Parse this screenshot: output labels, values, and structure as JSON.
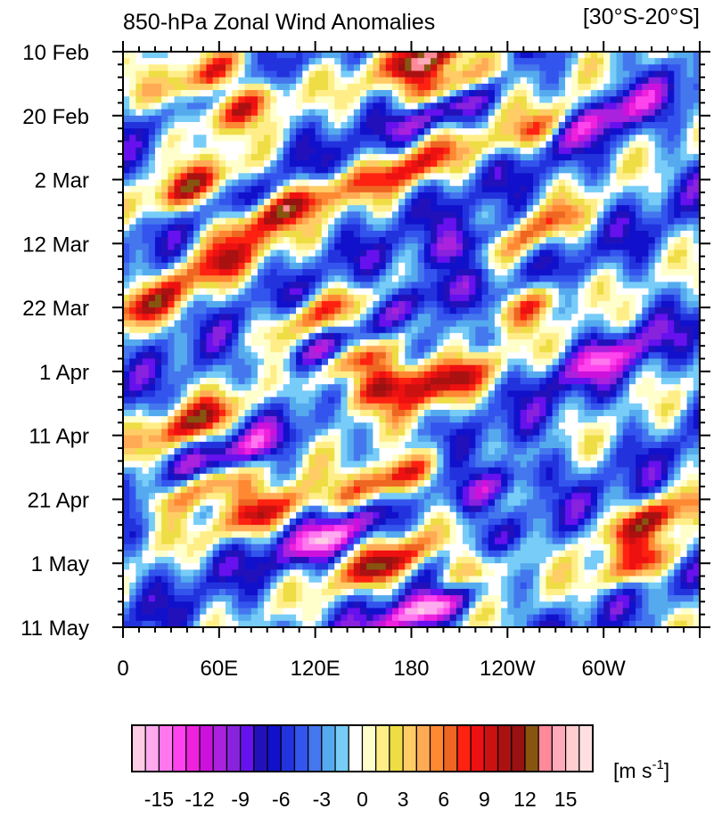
{
  "chart_data": {
    "type": "heatmap",
    "title": "850-hPa Zonal Wind Anomalies",
    "region_label": "[30°S-20°S]",
    "x_ticks": [
      "0",
      "60E",
      "120E",
      "180",
      "120W",
      "60W"
    ],
    "x_tick_longitudes": [
      0,
      60,
      120,
      180,
      240,
      300
    ],
    "xlim": [
      0,
      360
    ],
    "y_ticks": [
      "10 Feb",
      "20 Feb",
      "2 Mar",
      "12 Mar",
      "22 Mar",
      "1 Apr",
      "11 Apr",
      "21 Apr",
      "1 May",
      "11 May"
    ],
    "y_tick_days": [
      0,
      10,
      20,
      30,
      40,
      50,
      60,
      70,
      80,
      90
    ],
    "ylim": [
      0,
      90
    ],
    "colorbar": {
      "labels": [
        "-15",
        "-12",
        "-9",
        "-6",
        "-3",
        "0",
        "3",
        "6",
        "9",
        "12",
        "15"
      ],
      "label_values": [
        -15,
        -12,
        -9,
        -6,
        -3,
        0,
        3,
        6,
        9,
        12,
        15
      ],
      "units_main": "[m s",
      "units_sup": "-1",
      "units_end": "]",
      "colors": [
        "#ffcce6",
        "#ffaaee",
        "#ff77ee",
        "#ff44ee",
        "#ee22dd",
        "#cc11dd",
        "#aa22dd",
        "#8822dd",
        "#6611ee",
        "#2211bb",
        "#1111cc",
        "#2233dd",
        "#3355ee",
        "#4477ee",
        "#55aaee",
        "#77ccf8",
        "#ffffff",
        "#ffffcc",
        "#ffee88",
        "#eedd44",
        "#ffcc66",
        "#ffaa55",
        "#ff8833",
        "#ee6622",
        "#ff2211",
        "#ee1111",
        "#cc1111",
        "#aa1111",
        "#991111",
        "#885511",
        "#ff8899",
        "#ffaabb",
        "#ffccd0",
        "#ffe0e0"
      ]
    },
    "anomaly_features": [
      {
        "sign": "positive",
        "lon": 10,
        "day": 40,
        "amp": 10
      },
      {
        "sign": "positive",
        "lon": 50,
        "day": 4,
        "amp": 12
      },
      {
        "sign": "positive",
        "lon": 70,
        "day": 9,
        "amp": 11
      },
      {
        "sign": "positive",
        "lon": 45,
        "day": 21,
        "amp": 11
      },
      {
        "sign": "positive",
        "lon": 80,
        "day": 27,
        "amp": 9
      },
      {
        "sign": "positive",
        "lon": 60,
        "day": 33,
        "amp": 9
      },
      {
        "sign": "positive",
        "lon": 45,
        "day": 58,
        "amp": 12
      },
      {
        "sign": "positive",
        "lon": 50,
        "day": 68,
        "amp": 12
      },
      {
        "sign": "positive",
        "lon": 90,
        "day": 72,
        "amp": 11
      },
      {
        "sign": "positive",
        "lon": 115,
        "day": 23,
        "amp": 9
      },
      {
        "sign": "positive",
        "lon": 120,
        "day": 41,
        "amp": 10
      },
      {
        "sign": "positive",
        "lon": 150,
        "day": 48,
        "amp": 12
      },
      {
        "sign": "positive",
        "lon": 165,
        "day": 52,
        "amp": 13
      },
      {
        "sign": "positive",
        "lon": 165,
        "day": 67,
        "amp": 16
      },
      {
        "sign": "positive",
        "lon": 165,
        "day": 80,
        "amp": 13
      },
      {
        "sign": "positive",
        "lon": 190,
        "day": 1,
        "amp": 15
      },
      {
        "sign": "positive",
        "lon": 205,
        "day": 5,
        "amp": 14
      },
      {
        "sign": "positive",
        "lon": 180,
        "day": 18,
        "amp": 10
      },
      {
        "sign": "positive",
        "lon": 200,
        "day": 52,
        "amp": 11
      },
      {
        "sign": "positive",
        "lon": 215,
        "day": 82,
        "amp": 10
      },
      {
        "sign": "positive",
        "lon": 250,
        "day": 40,
        "amp": 10
      },
      {
        "sign": "positive",
        "lon": 255,
        "day": 28,
        "amp": 10
      },
      {
        "sign": "positive",
        "lon": 260,
        "day": 12,
        "amp": 9
      },
      {
        "sign": "positive",
        "lon": 330,
        "day": 73,
        "amp": 11
      },
      {
        "sign": "positive",
        "lon": 325,
        "day": 80,
        "amp": 11
      },
      {
        "sign": "negative",
        "lon": 300,
        "day": 10,
        "amp": -9
      },
      {
        "sign": "negative",
        "lon": 200,
        "day": 9,
        "amp": -8
      },
      {
        "sign": "negative",
        "lon": 130,
        "day": 46,
        "amp": -9
      },
      {
        "sign": "negative",
        "lon": 190,
        "day": 38,
        "amp": -8
      },
      {
        "sign": "negative",
        "lon": 220,
        "day": 30,
        "amp": -9
      },
      {
        "sign": "negative",
        "lon": 70,
        "day": 63,
        "amp": -8
      },
      {
        "sign": "negative",
        "lon": 130,
        "day": 76,
        "amp": -11
      },
      {
        "sign": "negative",
        "lon": 190,
        "day": 87,
        "amp": -14
      },
      {
        "sign": "negative",
        "lon": 230,
        "day": 68,
        "amp": -9
      },
      {
        "sign": "negative",
        "lon": 300,
        "day": 48,
        "amp": -8
      }
    ]
  }
}
